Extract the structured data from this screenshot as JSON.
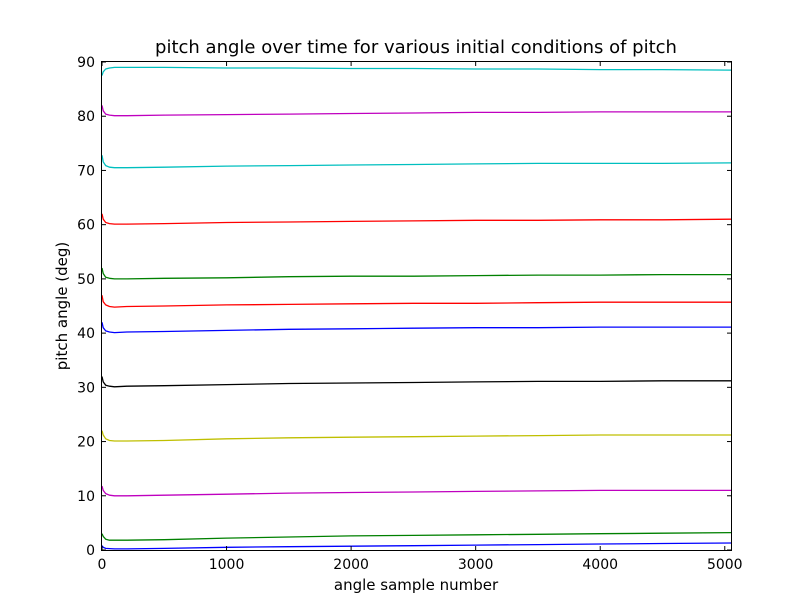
{
  "chart_data": {
    "type": "line",
    "title": "pitch angle over time for various initial conditions of pitch",
    "xlabel": "angle sample number",
    "ylabel": "pitch angle (deg)",
    "xlim": [
      0,
      5050
    ],
    "ylim": [
      0,
      90
    ],
    "x_ticks": [
      0,
      1000,
      2000,
      3000,
      4000,
      5000
    ],
    "y_ticks": [
      0,
      10,
      20,
      30,
      40,
      50,
      60,
      70,
      80,
      90
    ],
    "grid": false,
    "legend": "none",
    "x": [
      0,
      10,
      30,
      60,
      100,
      200,
      500,
      1000,
      1500,
      2000,
      2500,
      3000,
      3500,
      4000,
      4500,
      5050
    ],
    "series": [
      {
        "color": "#0000ff",
        "values": [
          0.8,
          0.5,
          0.3,
          0.25,
          0.2,
          0.2,
          0.3,
          0.5,
          0.6,
          0.7,
          0.8,
          0.9,
          1.0,
          1.1,
          1.2,
          1.3
        ]
      },
      {
        "color": "#008000",
        "values": [
          3.0,
          2.5,
          2.0,
          1.8,
          1.8,
          1.8,
          1.9,
          2.2,
          2.4,
          2.6,
          2.7,
          2.8,
          2.9,
          3.0,
          3.1,
          3.2
        ]
      },
      {
        "color": "#bf00bf",
        "values": [
          11.8,
          11.0,
          10.4,
          10.1,
          10.0,
          10.0,
          10.1,
          10.3,
          10.5,
          10.6,
          10.7,
          10.8,
          10.9,
          11.0,
          11.0,
          11.0
        ]
      },
      {
        "color": "#bfbf00",
        "values": [
          22.0,
          21.2,
          20.5,
          20.2,
          20.1,
          20.1,
          20.2,
          20.5,
          20.7,
          20.8,
          20.9,
          21.0,
          21.1,
          21.2,
          21.2,
          21.2
        ]
      },
      {
        "color": "#000000",
        "values": [
          32.0,
          31.0,
          30.4,
          30.2,
          30.1,
          30.2,
          30.3,
          30.5,
          30.7,
          30.8,
          30.9,
          31.0,
          31.1,
          31.1,
          31.2,
          31.2
        ]
      },
      {
        "color": "#0000ff",
        "values": [
          42.0,
          41.0,
          40.4,
          40.2,
          40.1,
          40.2,
          40.3,
          40.5,
          40.7,
          40.8,
          40.9,
          41.0,
          41.0,
          41.1,
          41.1,
          41.1
        ]
      },
      {
        "color": "#ff0000",
        "values": [
          47.0,
          45.8,
          45.2,
          44.9,
          44.8,
          44.9,
          45.0,
          45.2,
          45.3,
          45.4,
          45.5,
          45.5,
          45.6,
          45.7,
          45.7,
          45.7
        ]
      },
      {
        "color": "#008000",
        "values": [
          52.0,
          51.0,
          50.3,
          50.1,
          50.0,
          50.0,
          50.1,
          50.2,
          50.4,
          50.5,
          50.5,
          50.6,
          50.7,
          50.7,
          50.8,
          50.8
        ]
      },
      {
        "color": "#ff0000",
        "values": [
          62.0,
          61.0,
          60.4,
          60.2,
          60.1,
          60.1,
          60.2,
          60.4,
          60.5,
          60.6,
          60.7,
          60.8,
          60.8,
          60.9,
          60.9,
          61.0
        ]
      },
      {
        "color": "#00bfbf",
        "values": [
          72.8,
          71.6,
          70.9,
          70.6,
          70.5,
          70.5,
          70.6,
          70.8,
          70.9,
          71.0,
          71.1,
          71.2,
          71.3,
          71.3,
          71.3,
          71.4
        ]
      },
      {
        "color": "#bf00bf",
        "values": [
          82.0,
          81.0,
          80.4,
          80.2,
          80.1,
          80.1,
          80.2,
          80.3,
          80.4,
          80.5,
          80.6,
          80.7,
          80.7,
          80.8,
          80.8,
          80.8
        ]
      },
      {
        "color": "#00bfbf",
        "values": [
          87.5,
          88.2,
          88.7,
          88.9,
          89.0,
          89.0,
          89.0,
          88.9,
          88.9,
          88.8,
          88.8,
          88.7,
          88.7,
          88.6,
          88.6,
          88.5
        ]
      }
    ]
  }
}
